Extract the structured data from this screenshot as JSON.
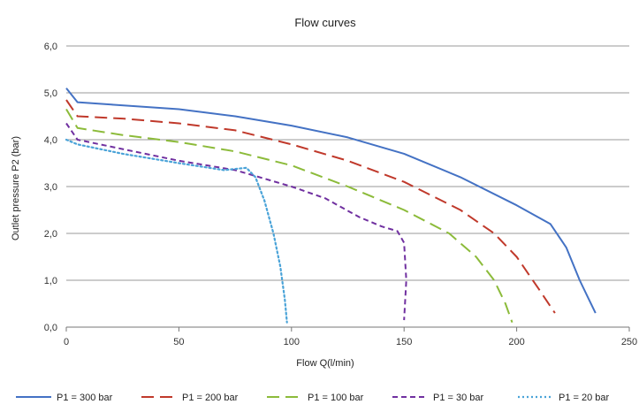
{
  "chart_data": {
    "type": "line",
    "title": "Flow curves",
    "xlabel": "Flow Q(l/min)",
    "ylabel": "Outlet pressure P2 (bar)",
    "xlim": [
      0,
      250
    ],
    "ylim": [
      0,
      6
    ],
    "xticks": [
      0,
      50,
      100,
      150,
      200,
      250
    ],
    "yticks": [
      "0,0",
      "1,0",
      "2,0",
      "3,0",
      "4,0",
      "5,0",
      "6,0"
    ],
    "grid": "horizontal",
    "legend_position": "bottom",
    "series": [
      {
        "name": "P1 = 300 bar",
        "color": "#4472c4",
        "dash": "solid",
        "points": [
          [
            0,
            5.1
          ],
          [
            5,
            4.8
          ],
          [
            20,
            4.75
          ],
          [
            50,
            4.65
          ],
          [
            75,
            4.5
          ],
          [
            100,
            4.3
          ],
          [
            125,
            4.05
          ],
          [
            150,
            3.7
          ],
          [
            175,
            3.2
          ],
          [
            200,
            2.6
          ],
          [
            215,
            2.2
          ],
          [
            222,
            1.7
          ],
          [
            228,
            1.0
          ],
          [
            232,
            0.6
          ],
          [
            235,
            0.3
          ]
        ]
      },
      {
        "name": "P1 = 200 bar",
        "color": "#c0392b",
        "dash": "long",
        "points": [
          [
            0,
            4.85
          ],
          [
            5,
            4.5
          ],
          [
            25,
            4.45
          ],
          [
            50,
            4.35
          ],
          [
            75,
            4.2
          ],
          [
            100,
            3.9
          ],
          [
            125,
            3.55
          ],
          [
            150,
            3.1
          ],
          [
            175,
            2.5
          ],
          [
            190,
            2.0
          ],
          [
            200,
            1.5
          ],
          [
            210,
            0.8
          ],
          [
            217,
            0.3
          ]
        ]
      },
      {
        "name": "P1 = 100 bar",
        "color": "#8cbb3a",
        "dash": "long",
        "points": [
          [
            0,
            4.65
          ],
          [
            5,
            4.25
          ],
          [
            25,
            4.1
          ],
          [
            50,
            3.95
          ],
          [
            75,
            3.75
          ],
          [
            100,
            3.45
          ],
          [
            125,
            3.0
          ],
          [
            150,
            2.5
          ],
          [
            170,
            2.0
          ],
          [
            182,
            1.5
          ],
          [
            190,
            1.0
          ],
          [
            195,
            0.5
          ],
          [
            198,
            0.1
          ]
        ]
      },
      {
        "name": "P1 = 30 bar",
        "color": "#7030a0",
        "dash": "short",
        "points": [
          [
            0,
            4.35
          ],
          [
            5,
            4.0
          ],
          [
            25,
            3.8
          ],
          [
            50,
            3.55
          ],
          [
            75,
            3.35
          ],
          [
            100,
            3.0
          ],
          [
            115,
            2.75
          ],
          [
            130,
            2.35
          ],
          [
            140,
            2.15
          ],
          [
            147,
            2.05
          ],
          [
            150,
            1.8
          ],
          [
            151,
            1.0
          ],
          [
            150,
            0.15
          ]
        ]
      },
      {
        "name": "P1 = 20 bar",
        "color": "#4aa3d8",
        "dash": "dotted",
        "points": [
          [
            0,
            4.0
          ],
          [
            5,
            3.9
          ],
          [
            25,
            3.7
          ],
          [
            50,
            3.5
          ],
          [
            70,
            3.35
          ],
          [
            80,
            3.4
          ],
          [
            84,
            3.2
          ],
          [
            88,
            2.7
          ],
          [
            92,
            2.0
          ],
          [
            95,
            1.3
          ],
          [
            97,
            0.6
          ],
          [
            98,
            0.1
          ]
        ]
      }
    ]
  }
}
